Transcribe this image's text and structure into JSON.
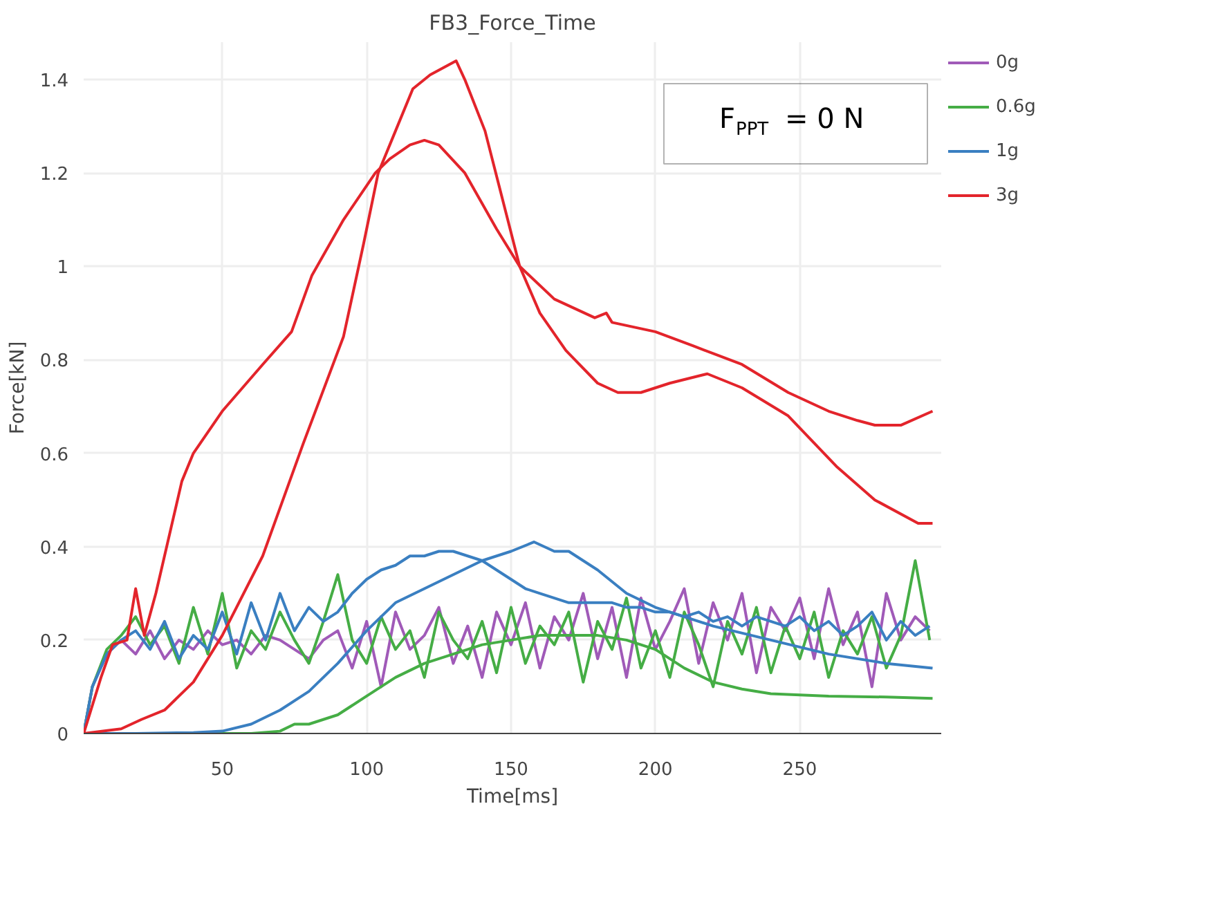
{
  "chart_data": {
    "type": "line",
    "title": "FB3_Force_Time",
    "xlabel": "Time[ms]",
    "ylabel": "Force[kN]",
    "xlim": [
      2,
      299
    ],
    "ylim": [
      0,
      1.48
    ],
    "xticks": [
      50,
      100,
      150,
      200,
      250
    ],
    "yticks": [
      0,
      0.2,
      0.4,
      0.6,
      0.8,
      1,
      1.2,
      1.4
    ],
    "grid": true,
    "legend": "top right",
    "line_style": "solid",
    "marker": "none",
    "annotations": [
      "F$_{PPT}$ = 0 N"
    ],
    "series": [
      {
        "name": "0g",
        "color": "#a05ab8",
        "x": [
          2,
          5,
          10,
          15,
          20,
          25,
          30,
          35,
          40,
          45,
          50,
          55,
          60,
          65,
          70,
          75,
          80,
          85,
          90,
          95,
          100,
          105,
          110,
          115,
          120,
          125,
          130,
          135,
          140,
          145,
          150,
          155,
          160,
          165,
          170,
          175,
          180,
          185,
          190,
          195,
          200,
          205,
          210,
          215,
          220,
          225,
          230,
          235,
          240,
          245,
          250,
          255,
          260,
          265,
          270,
          275,
          280,
          285,
          290,
          295
        ],
        "values": [
          0,
          0.1,
          0.17,
          0.2,
          0.17,
          0.22,
          0.16,
          0.2,
          0.18,
          0.22,
          0.19,
          0.2,
          0.17,
          0.21,
          0.2,
          0.18,
          0.16,
          0.2,
          0.22,
          0.14,
          0.24,
          0.1,
          0.26,
          0.18,
          0.21,
          0.27,
          0.15,
          0.23,
          0.12,
          0.26,
          0.19,
          0.28,
          0.14,
          0.25,
          0.2,
          0.3,
          0.16,
          0.27,
          0.12,
          0.29,
          0.18,
          0.24,
          0.31,
          0.15,
          0.28,
          0.2,
          0.3,
          0.13,
          0.27,
          0.22,
          0.29,
          0.16,
          0.31,
          0.19,
          0.26,
          0.1,
          0.3,
          0.2,
          0.25,
          0.22
        ]
      },
      {
        "name": "0.6g",
        "color": "#45ad45",
        "x": [
          2,
          5,
          10,
          15,
          20,
          25,
          30,
          35,
          40,
          45,
          50,
          55,
          60,
          65,
          70,
          75,
          80,
          85,
          90,
          95,
          100,
          105,
          110,
          115,
          120,
          125,
          130,
          135,
          140,
          145,
          150,
          155,
          160,
          165,
          170,
          175,
          180,
          185,
          190,
          195,
          200,
          205,
          210,
          215,
          220,
          225,
          230,
          235,
          240,
          245,
          250,
          255,
          260,
          265,
          270,
          275,
          280,
          285,
          290,
          295
        ],
        "values": [
          0,
          0.1,
          0.18,
          0.21,
          0.25,
          0.19,
          0.23,
          0.15,
          0.27,
          0.17,
          0.3,
          0.14,
          0.22,
          0.18,
          0.26,
          0.2,
          0.15,
          0.24,
          0.34,
          0.2,
          0.15,
          0.25,
          0.18,
          0.22,
          0.12,
          0.26,
          0.2,
          0.16,
          0.24,
          0.13,
          0.27,
          0.15,
          0.23,
          0.19,
          0.26,
          0.11,
          0.24,
          0.18,
          0.29,
          0.14,
          0.22,
          0.12,
          0.26,
          0.19,
          0.1,
          0.24,
          0.17,
          0.27,
          0.13,
          0.23,
          0.16,
          0.26,
          0.12,
          0.22,
          0.17,
          0.25,
          0.14,
          0.21,
          0.37,
          0.2
        ]
      },
      {
        "color": "#45ad45",
        "x": [
          2,
          20,
          40,
          60,
          70,
          75,
          80,
          90,
          100,
          110,
          120,
          130,
          140,
          150,
          160,
          170,
          180,
          190,
          200,
          210,
          220,
          230,
          240,
          260,
          280,
          296
        ],
        "values": [
          0,
          0,
          0,
          0,
          0.005,
          0.02,
          0.02,
          0.04,
          0.08,
          0.12,
          0.15,
          0.17,
          0.19,
          0.2,
          0.21,
          0.21,
          0.21,
          0.2,
          0.18,
          0.14,
          0.11,
          0.095,
          0.085,
          0.08,
          0.078,
          0.075
        ]
      },
      {
        "name": "1g",
        "color": "#3a7fc1",
        "x": [
          2,
          5,
          10,
          15,
          20,
          25,
          30,
          35,
          40,
          45,
          50,
          55,
          60,
          65,
          70,
          75,
          80,
          85,
          90,
          95,
          100,
          105,
          110,
          115,
          120,
          125,
          130,
          135,
          140,
          145,
          150,
          155,
          160,
          165,
          170,
          175,
          180,
          185,
          190,
          195,
          200,
          205,
          210,
          215,
          220,
          225,
          230,
          235,
          240,
          245,
          250,
          255,
          260,
          265,
          270,
          275,
          280,
          285,
          290,
          295
        ],
        "values": [
          0,
          0.1,
          0.17,
          0.2,
          0.22,
          0.18,
          0.24,
          0.16,
          0.21,
          0.18,
          0.26,
          0.17,
          0.28,
          0.2,
          0.3,
          0.22,
          0.27,
          0.24,
          0.26,
          0.3,
          0.33,
          0.35,
          0.36,
          0.38,
          0.38,
          0.39,
          0.39,
          0.38,
          0.37,
          0.35,
          0.33,
          0.31,
          0.3,
          0.29,
          0.28,
          0.28,
          0.28,
          0.28,
          0.27,
          0.27,
          0.26,
          0.26,
          0.25,
          0.26,
          0.24,
          0.25,
          0.23,
          0.25,
          0.24,
          0.23,
          0.25,
          0.22,
          0.24,
          0.21,
          0.23,
          0.26,
          0.2,
          0.24,
          0.21,
          0.23
        ]
      },
      {
        "color": "#3a7fc1",
        "x": [
          2,
          20,
          40,
          50,
          60,
          70,
          80,
          90,
          100,
          110,
          120,
          130,
          140,
          150,
          158,
          165,
          170,
          180,
          190,
          200,
          210,
          220,
          240,
          260,
          280,
          296
        ],
        "values": [
          0,
          0,
          0.002,
          0.005,
          0.02,
          0.05,
          0.09,
          0.15,
          0.22,
          0.28,
          0.31,
          0.34,
          0.37,
          0.39,
          0.41,
          0.39,
          0.39,
          0.35,
          0.3,
          0.27,
          0.25,
          0.23,
          0.2,
          0.17,
          0.15,
          0.14
        ]
      },
      {
        "name": "3g",
        "color": "#e3242b",
        "x": [
          2,
          8,
          12,
          17,
          20,
          23,
          27,
          36,
          40,
          50,
          64,
          74,
          81,
          92,
          103,
          108,
          115,
          120,
          125,
          134,
          145,
          153,
          165,
          179,
          183,
          185,
          200,
          213,
          230,
          246,
          260,
          270,
          276,
          285,
          296
        ],
        "values": [
          0,
          0.12,
          0.19,
          0.2,
          0.31,
          0.21,
          0.3,
          0.54,
          0.6,
          0.69,
          0.79,
          0.86,
          0.98,
          1.1,
          1.2,
          1.23,
          1.26,
          1.27,
          1.26,
          1.2,
          1.08,
          1.0,
          0.93,
          0.89,
          0.9,
          0.88,
          0.86,
          0.83,
          0.79,
          0.73,
          0.69,
          0.67,
          0.66,
          0.66,
          0.69
        ]
      },
      {
        "color": "#e3242b",
        "x": [
          2,
          15,
          22,
          30,
          40,
          50,
          64,
          78,
          92,
          99,
          104,
          110,
          116,
          122,
          128,
          131,
          134,
          141,
          153,
          160,
          169,
          180,
          187,
          195,
          205,
          218,
          230,
          246,
          263,
          276,
          291,
          296
        ],
        "values": [
          0,
          0.01,
          0.03,
          0.05,
          0.11,
          0.21,
          0.38,
          0.62,
          0.85,
          1.05,
          1.2,
          1.29,
          1.38,
          1.41,
          1.43,
          1.44,
          1.4,
          1.29,
          1.0,
          0.9,
          0.82,
          0.75,
          0.73,
          0.73,
          0.75,
          0.77,
          0.74,
          0.68,
          0.57,
          0.5,
          0.45,
          0.45
        ]
      }
    ]
  }
}
